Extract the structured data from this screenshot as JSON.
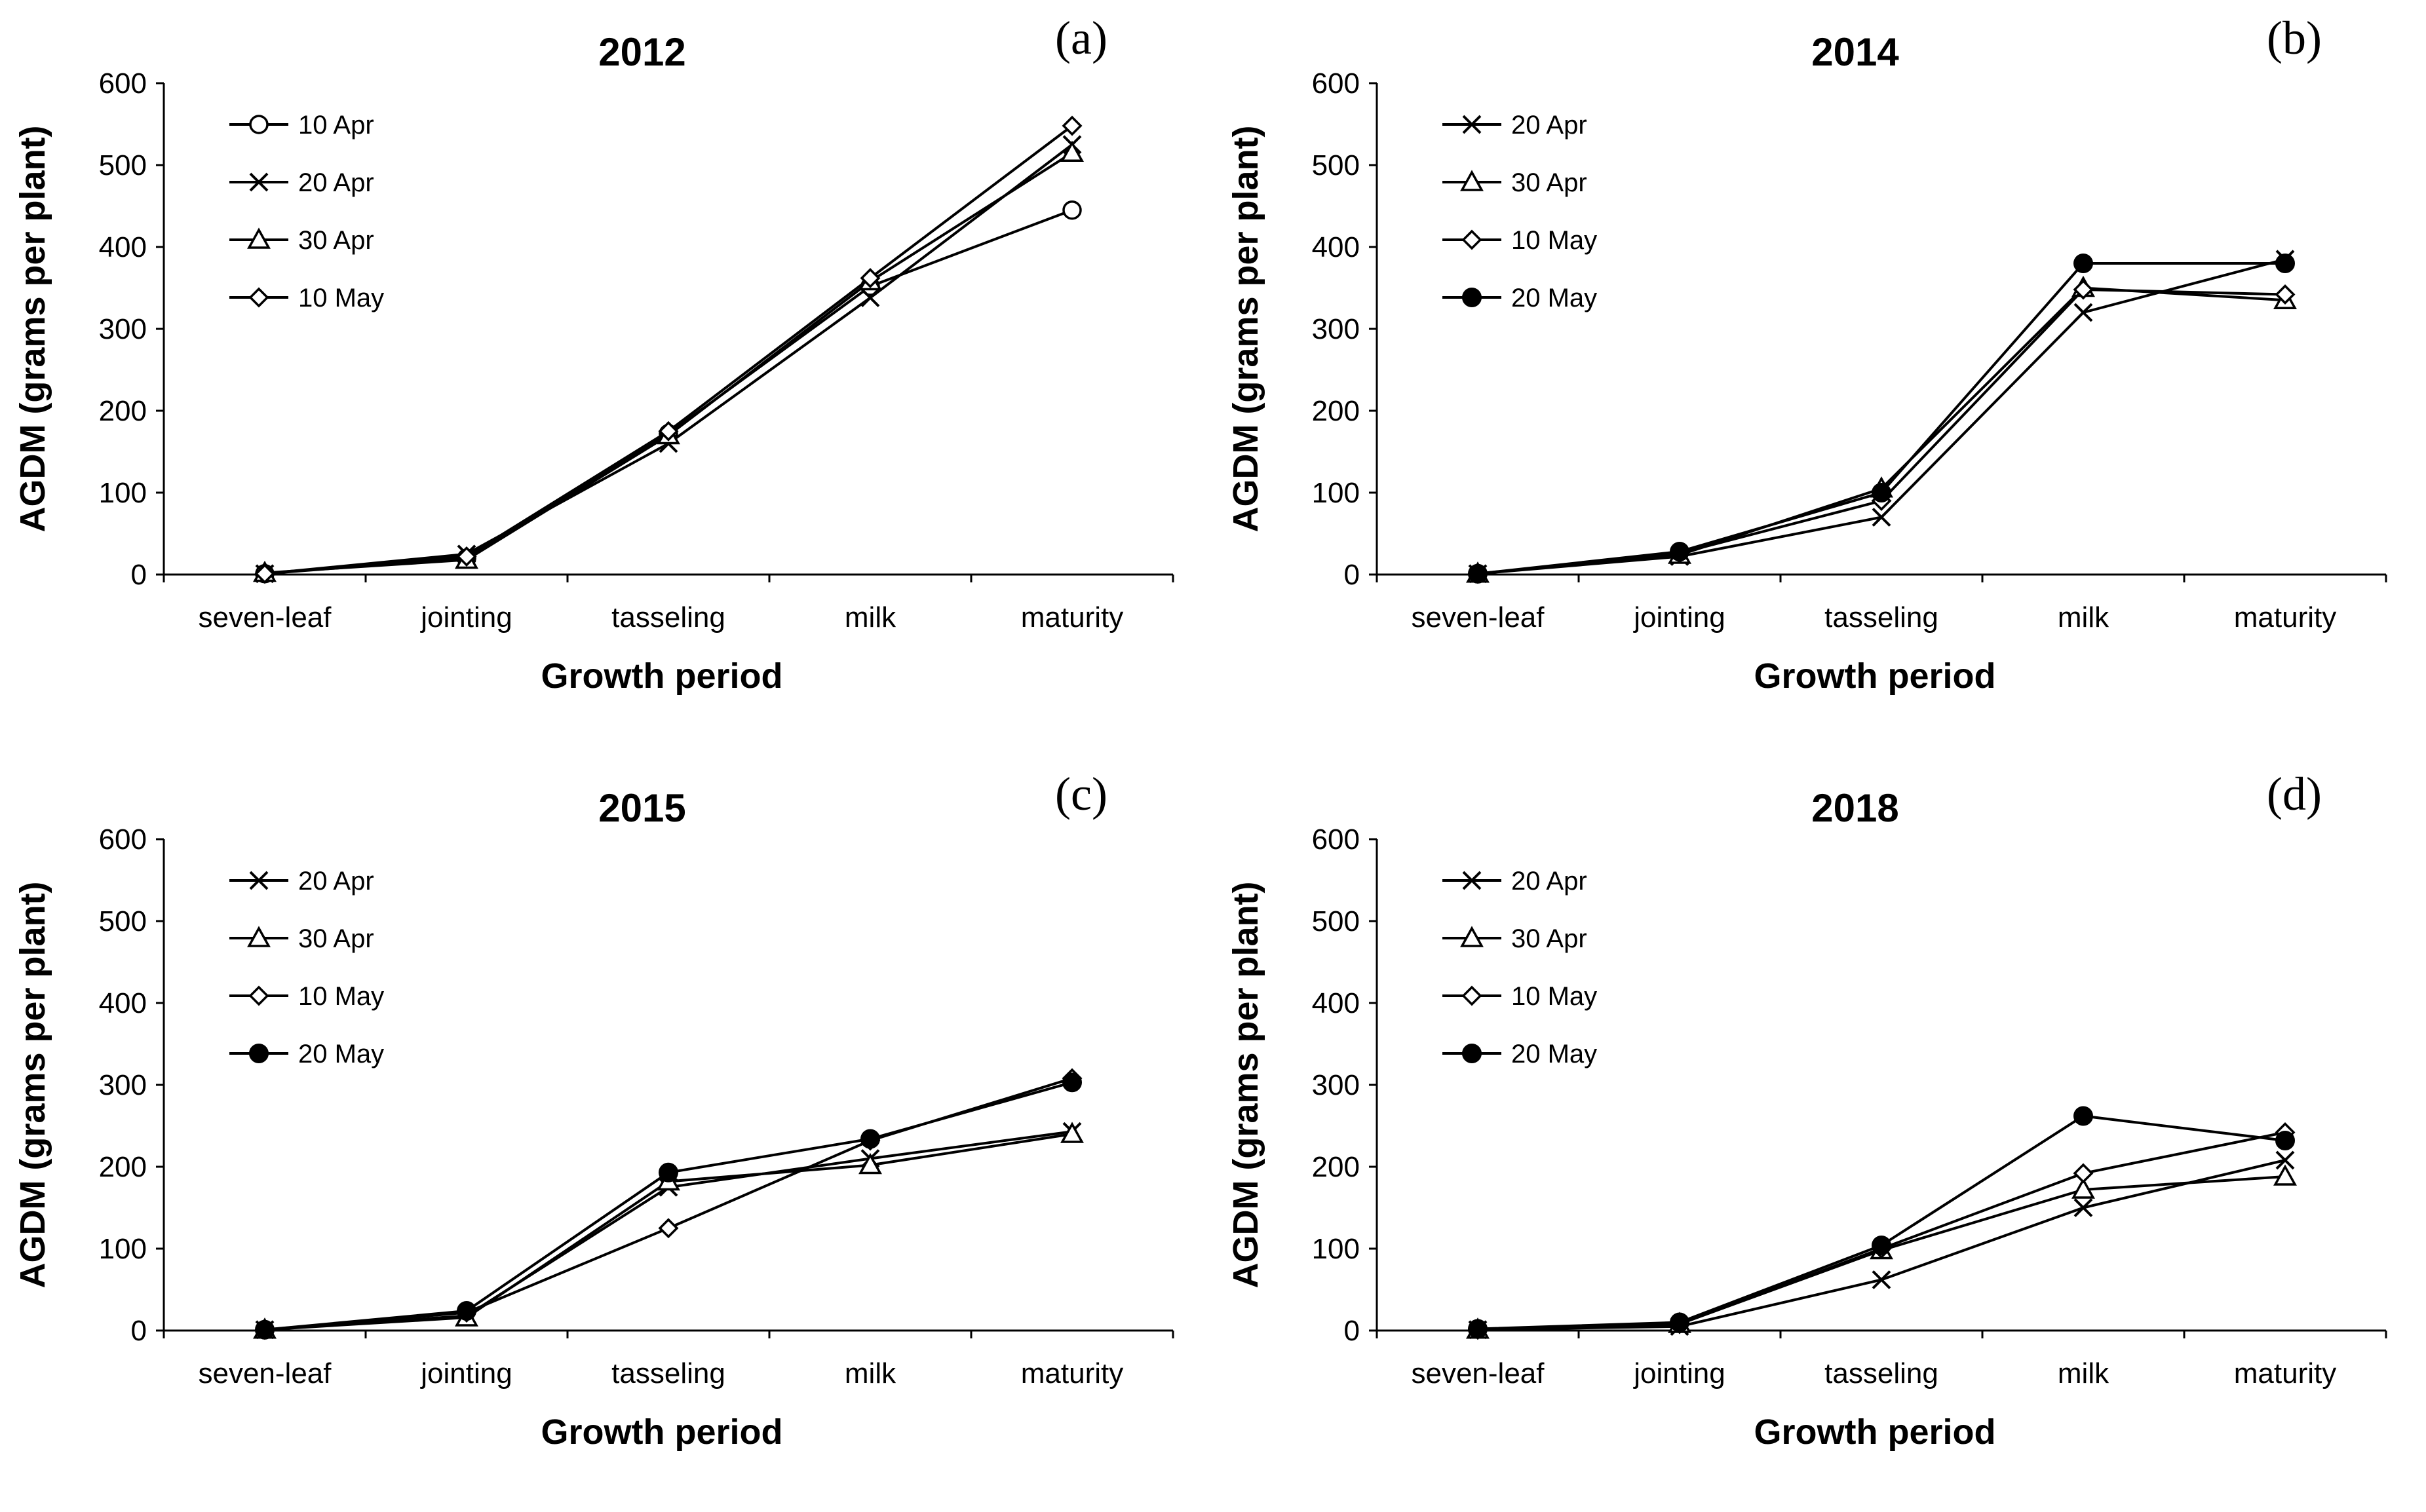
{
  "figure": {
    "xlabel": "Growth period",
    "ylabel": "AGDM (grams per plant)"
  },
  "chart_data": [
    {
      "type": "line",
      "title": "2012",
      "panel_label": "(a)",
      "xlabel": "Growth period",
      "ylabel": "AGDM (grams per plant)",
      "categories": [
        "seven-leaf",
        "jointing",
        "tasseling",
        "milk",
        "maturity"
      ],
      "ylim": [
        0,
        600
      ],
      "yticks": [
        "0",
        "100",
        "200",
        "300",
        "400",
        "500",
        "600"
      ],
      "grid": false,
      "legend": "top-left",
      "series": [
        {
          "name": "10 Apr",
          "marker": "circle",
          "values": [
            1,
            20,
            172,
            352,
            445
          ]
        },
        {
          "name": "20 Apr",
          "marker": "cross",
          "values": [
            1,
            25,
            160,
            338,
            525
          ]
        },
        {
          "name": "30 Apr",
          "marker": "triangle",
          "values": [
            2,
            18,
            170,
            358,
            515
          ]
        },
        {
          "name": "10 May",
          "marker": "diamond",
          "values": [
            1,
            22,
            175,
            362,
            548
          ]
        }
      ]
    },
    {
      "type": "line",
      "title": "2014",
      "panel_label": "(b)",
      "xlabel": "Growth period",
      "ylabel": "AGDM (grams per plant)",
      "categories": [
        "seven-leaf",
        "jointing",
        "tasseling",
        "milk",
        "maturity"
      ],
      "ylim": [
        0,
        600
      ],
      "yticks": [
        "0",
        "100",
        "200",
        "300",
        "400",
        "500",
        "600"
      ],
      "grid": false,
      "legend": "top-left",
      "series": [
        {
          "name": "20 Apr",
          "marker": "cross",
          "values": [
            1,
            22,
            70,
            320,
            385
          ]
        },
        {
          "name": "30 Apr",
          "marker": "triangle",
          "values": [
            1,
            24,
            105,
            350,
            335
          ]
        },
        {
          "name": "10 May",
          "marker": "diamond",
          "values": [
            1,
            26,
            90,
            348,
            342
          ]
        },
        {
          "name": "20 May",
          "marker": "filled-circle",
          "values": [
            1,
            28,
            100,
            380,
            380
          ]
        }
      ]
    },
    {
      "type": "line",
      "title": "2015",
      "panel_label": "(c)",
      "xlabel": "Growth period",
      "ylabel": "AGDM (grams per plant)",
      "categories": [
        "seven-leaf",
        "jointing",
        "tasseling",
        "milk",
        "maturity"
      ],
      "ylim": [
        0,
        600
      ],
      "yticks": [
        "0",
        "100",
        "200",
        "300",
        "400",
        "500",
        "600"
      ],
      "grid": false,
      "legend": "top-left",
      "series": [
        {
          "name": "20 Apr",
          "marker": "cross",
          "values": [
            1,
            18,
            175,
            210,
            243
          ]
        },
        {
          "name": "30 Apr",
          "marker": "triangle",
          "values": [
            1,
            16,
            182,
            202,
            240
          ]
        },
        {
          "name": "10 May",
          "marker": "diamond",
          "values": [
            1,
            22,
            125,
            232,
            308
          ]
        },
        {
          "name": "20 May",
          "marker": "filled-circle",
          "values": [
            1,
            24,
            193,
            234,
            303
          ]
        }
      ]
    },
    {
      "type": "line",
      "title": "2018",
      "panel_label": "(d)",
      "xlabel": "Growth period",
      "ylabel": "AGDM (grams per plant)",
      "categories": [
        "seven-leaf",
        "jointing",
        "tasseling",
        "milk",
        "maturity"
      ],
      "ylim": [
        0,
        600
      ],
      "yticks": [
        "0",
        "100",
        "200",
        "300",
        "400",
        "500",
        "600"
      ],
      "grid": false,
      "legend": "top-left",
      "series": [
        {
          "name": "20 Apr",
          "marker": "cross",
          "values": [
            1,
            5,
            62,
            150,
            208
          ]
        },
        {
          "name": "30 Apr",
          "marker": "triangle",
          "values": [
            1,
            8,
            98,
            172,
            188
          ]
        },
        {
          "name": "10 May",
          "marker": "diamond",
          "values": [
            1,
            8,
            100,
            192,
            242
          ]
        },
        {
          "name": "20 May",
          "marker": "filled-circle",
          "values": [
            2,
            10,
            104,
            262,
            232
          ]
        }
      ]
    }
  ]
}
